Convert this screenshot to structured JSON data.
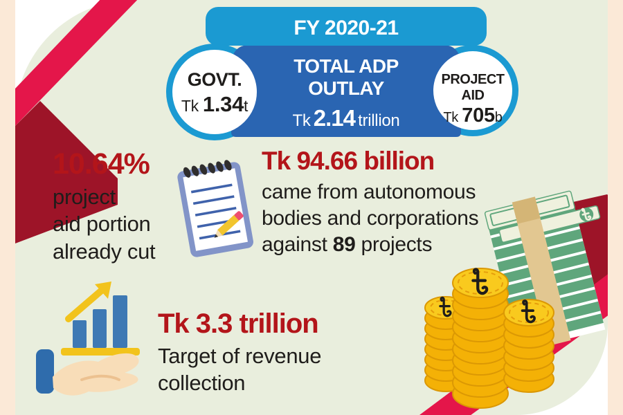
{
  "banner": {
    "fiscal_year": "FY 2020-21",
    "center_title": "TOTAL ADP\nOUTLAY",
    "center_value_prefix": "Tk",
    "center_value": "2.14",
    "center_value_suffix": "trillion",
    "govt_label": "GOVT.",
    "govt_prefix": "Tk",
    "govt_value": "1.34",
    "govt_suffix": "t",
    "aid_label": "PROJECT AID",
    "aid_prefix": "Tk",
    "aid_value": "705",
    "aid_suffix": "b"
  },
  "stats": [
    {
      "headline": "10.64%",
      "body": "project\naid portion\nalready cut"
    },
    {
      "headline": "Tk 94.66 billion",
      "body_start": "came from autonomous\nbodies and corporations\nagainst",
      "body_bold": "89",
      "body_end": "projects"
    },
    {
      "headline": "Tk 3.3 trillion",
      "body": "Target of revenue\ncollection"
    }
  ],
  "icons": [
    "notepad-icon",
    "pencil-icon",
    "growth-bars-icon",
    "arrow-up-icon",
    "hand-icon",
    "banknote-stack-icon",
    "coin-stacks-icon",
    "taka-symbol-icon"
  ],
  "colors": {
    "frame_cream": "#fbe9d7",
    "panel_sage": "#e9eedd",
    "ribbon_crimson": "#e4164a",
    "ribbon_maroon": "#9d1428",
    "headline_red": "#b3151a",
    "text_black": "#1f1d1b",
    "blue_light": "#1b9ad2",
    "blue_dark": "#2a65b2",
    "coin_gold": "#f8c412",
    "note_green": "#5fa67c",
    "bar_blue": "#3e79b4",
    "accent_yellow": "#f2c31c"
  }
}
